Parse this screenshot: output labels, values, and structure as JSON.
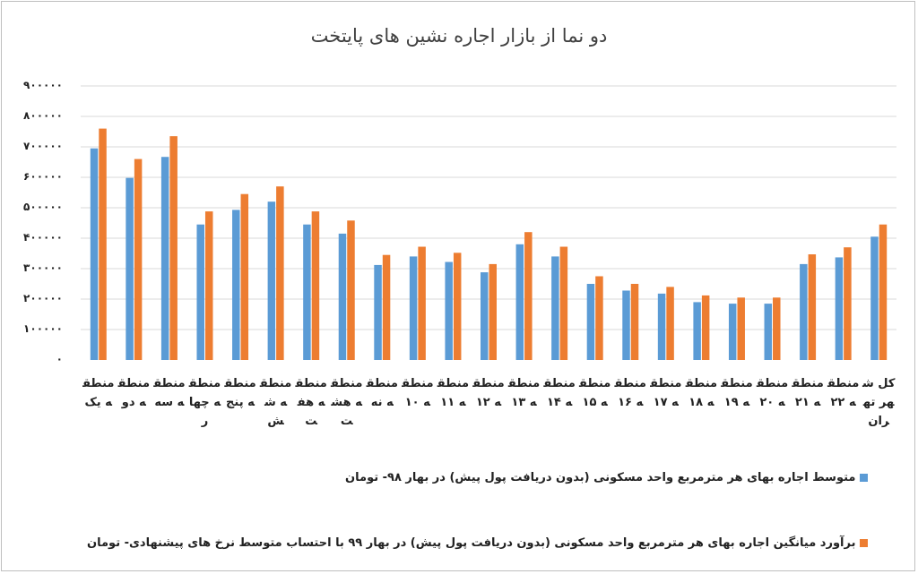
{
  "colors": {
    "series1": "#5b9bd5",
    "series2": "#ed7d31",
    "grid": "#d9d9d9",
    "text": "#222222"
  },
  "chart_data": {
    "type": "bar",
    "title": "دو نما از بازار اجاره نشین های پایتخت",
    "ylim": [
      0,
      900000
    ],
    "yticks": [
      "۰",
      "۱۰۰۰۰۰",
      "۲۰۰۰۰۰",
      "۳۰۰۰۰۰",
      "۴۰۰۰۰۰",
      "۵۰۰۰۰۰",
      "۶۰۰۰۰۰",
      "۷۰۰۰۰۰",
      "۸۰۰۰۰۰",
      "۹۰۰۰۰۰"
    ],
    "grid": true,
    "legend_position": "bottom",
    "categories": [
      "منطقه یک",
      "منطقه دو",
      "منطقه سه",
      "منطقه چهار",
      "منطقه پنج",
      "منطقه شش",
      "منطقه هفت",
      "منطقه هشت",
      "منطقه نه",
      "منطقه ۱۰",
      "منطقه ۱۱",
      "منطقه ۱۲",
      "منطقه ۱۳",
      "منطقه ۱۴",
      "منطقه ۱۵",
      "منطقه ۱۶",
      "منطقه ۱۷",
      "منطقه ۱۸",
      "منطقه ۱۹",
      "منطقه ۲۰",
      "منطقه ۲۱",
      "منطقه ۲۲",
      "کل شهر تهران"
    ],
    "series": [
      {
        "name": "متوسط اجاره بهای هر مترمربع واحد مسکونی (بدون دریافت پول پیش) در بهار ۹۸- تومان",
        "values": [
          695000,
          598000,
          667000,
          445000,
          493000,
          520000,
          445000,
          415000,
          312000,
          340000,
          322000,
          288000,
          380000,
          340000,
          250000,
          228000,
          218000,
          190000,
          185000,
          185000,
          315000,
          337000,
          405000
        ]
      },
      {
        "name": "برآورد میانگین اجاره بهای هر مترمربع واحد مسکونی (بدون دریافت پول پیش) در بهار ۹۹ با احتساب متوسط نرخ های پیشنهادی- تومان",
        "values": [
          760000,
          660000,
          735000,
          488000,
          545000,
          570000,
          488000,
          458000,
          345000,
          372000,
          352000,
          315000,
          420000,
          372000,
          275000,
          250000,
          240000,
          212000,
          205000,
          205000,
          347000,
          370000,
          445000
        ]
      }
    ]
  }
}
